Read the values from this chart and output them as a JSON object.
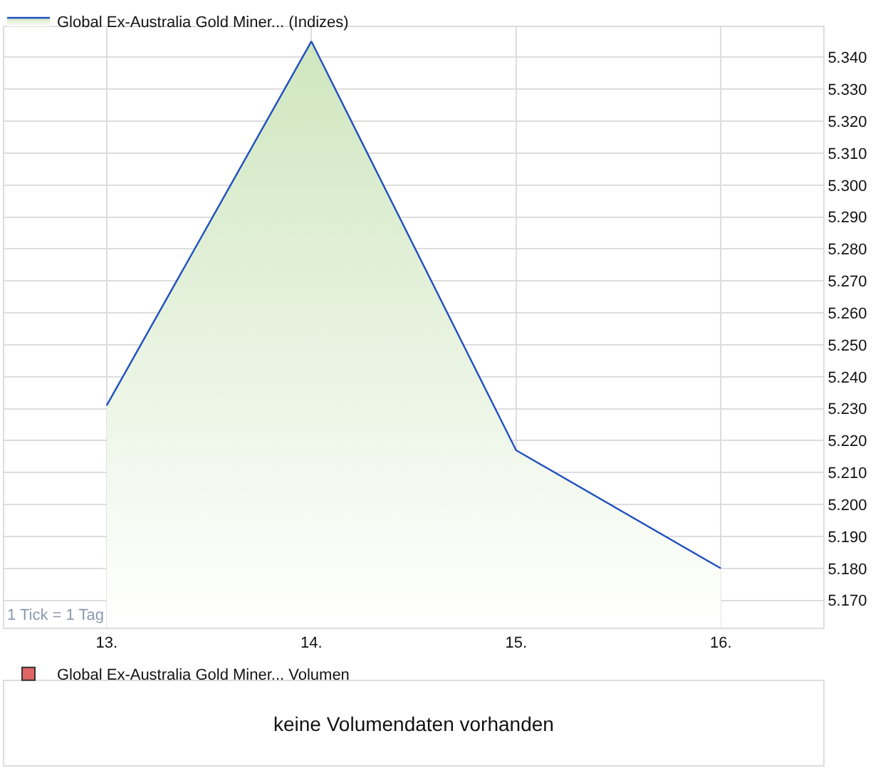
{
  "chart_data": [
    {
      "type": "area",
      "x": [
        13,
        14,
        15,
        16
      ],
      "series": [
        {
          "name": "Global Ex-Australia Gold Miner... (Indizes)",
          "color": "#1f4fbf",
          "values": [
            5.231,
            5.345,
            5.217,
            5.18
          ]
        }
      ],
      "xlim": [
        12.5,
        16.5
      ],
      "xticks": [
        {
          "value": 13,
          "label": "13."
        },
        {
          "value": 14,
          "label": "14."
        },
        {
          "value": 15,
          "label": "15."
        },
        {
          "value": 16,
          "label": "16."
        }
      ],
      "ylim": [
        5.1615,
        5.3495
      ],
      "yticks": [
        {
          "value": 5.17,
          "label": "5.170"
        },
        {
          "value": 5.18,
          "label": "5.180"
        },
        {
          "value": 5.19,
          "label": "5.190"
        },
        {
          "value": 5.2,
          "label": "5.200"
        },
        {
          "value": 5.21,
          "label": "5.210"
        },
        {
          "value": 5.22,
          "label": "5.220"
        },
        {
          "value": 5.23,
          "label": "5.230"
        },
        {
          "value": 5.24,
          "label": "5.240"
        },
        {
          "value": 5.25,
          "label": "5.250"
        },
        {
          "value": 5.26,
          "label": "5.260"
        },
        {
          "value": 5.27,
          "label": "5.270"
        },
        {
          "value": 5.28,
          "label": "5.280"
        },
        {
          "value": 5.29,
          "label": "5.290"
        },
        {
          "value": 5.3,
          "label": "5.300"
        },
        {
          "value": 5.31,
          "label": "5.310"
        },
        {
          "value": 5.32,
          "label": "5.320"
        },
        {
          "value": 5.33,
          "label": "5.330"
        },
        {
          "value": 5.34,
          "label": "5.340"
        }
      ],
      "grid": true,
      "legend": "top left",
      "annotations": [
        "1 Tick = 1 Tag"
      ]
    },
    {
      "type": "other",
      "series": [
        {
          "name": "Global Ex-Australia Gold Miner... Volumen",
          "color": "#e06666"
        }
      ],
      "legend": "top left",
      "annotations": [
        "keine Volumendaten vorhanden"
      ]
    }
  ]
}
